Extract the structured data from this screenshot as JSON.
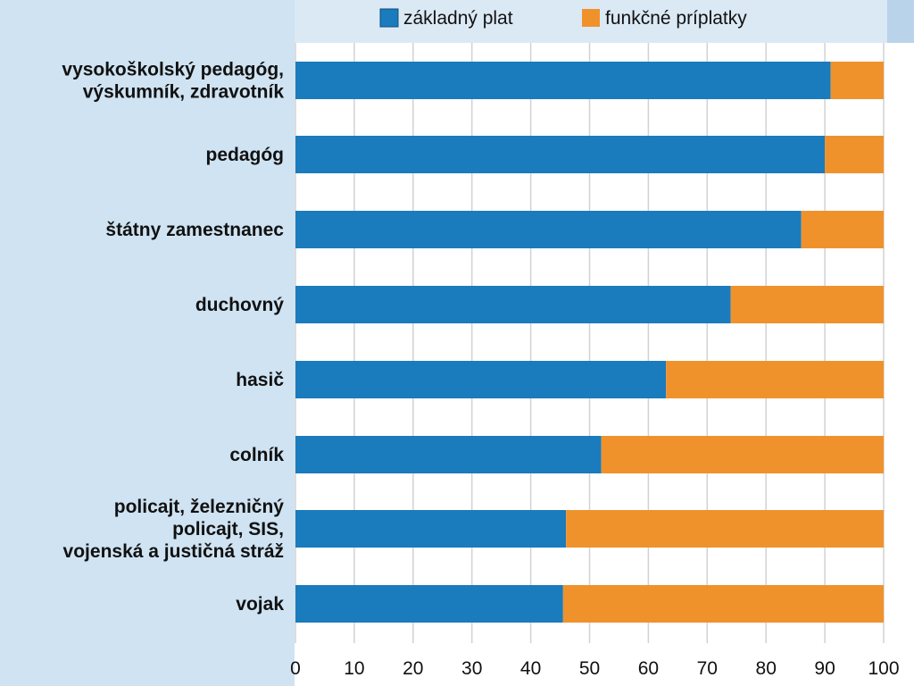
{
  "chart_data": {
    "type": "bar",
    "orientation": "horizontal",
    "stacked": true,
    "categories": [
      [
        "vysokoškolský pedagóg,",
        "výskumník, zdravotník"
      ],
      [
        "pedagóg"
      ],
      [
        "štátny zamestnanec"
      ],
      [
        "duchovný"
      ],
      [
        "hasič"
      ],
      [
        "colník"
      ],
      [
        "policajt, železničný",
        "policajt, SIS,",
        "vojenská a justičná stráž"
      ],
      [
        "vojak"
      ]
    ],
    "series": [
      {
        "name": "základný plat",
        "color": "#1a7bbd",
        "values": [
          91,
          90,
          86,
          74,
          63,
          52,
          46,
          45.5
        ]
      },
      {
        "name": "funkčné príplatky",
        "color": "#f0922c",
        "values": [
          9,
          10,
          14,
          26,
          37,
          48,
          54,
          54.5
        ]
      }
    ],
    "xlim": [
      0,
      100
    ],
    "xticks": [
      "0",
      "10",
      "20",
      "30",
      "40",
      "50",
      "60",
      "70",
      "80",
      "90",
      "100"
    ],
    "grid": true,
    "legend_position": "top"
  }
}
